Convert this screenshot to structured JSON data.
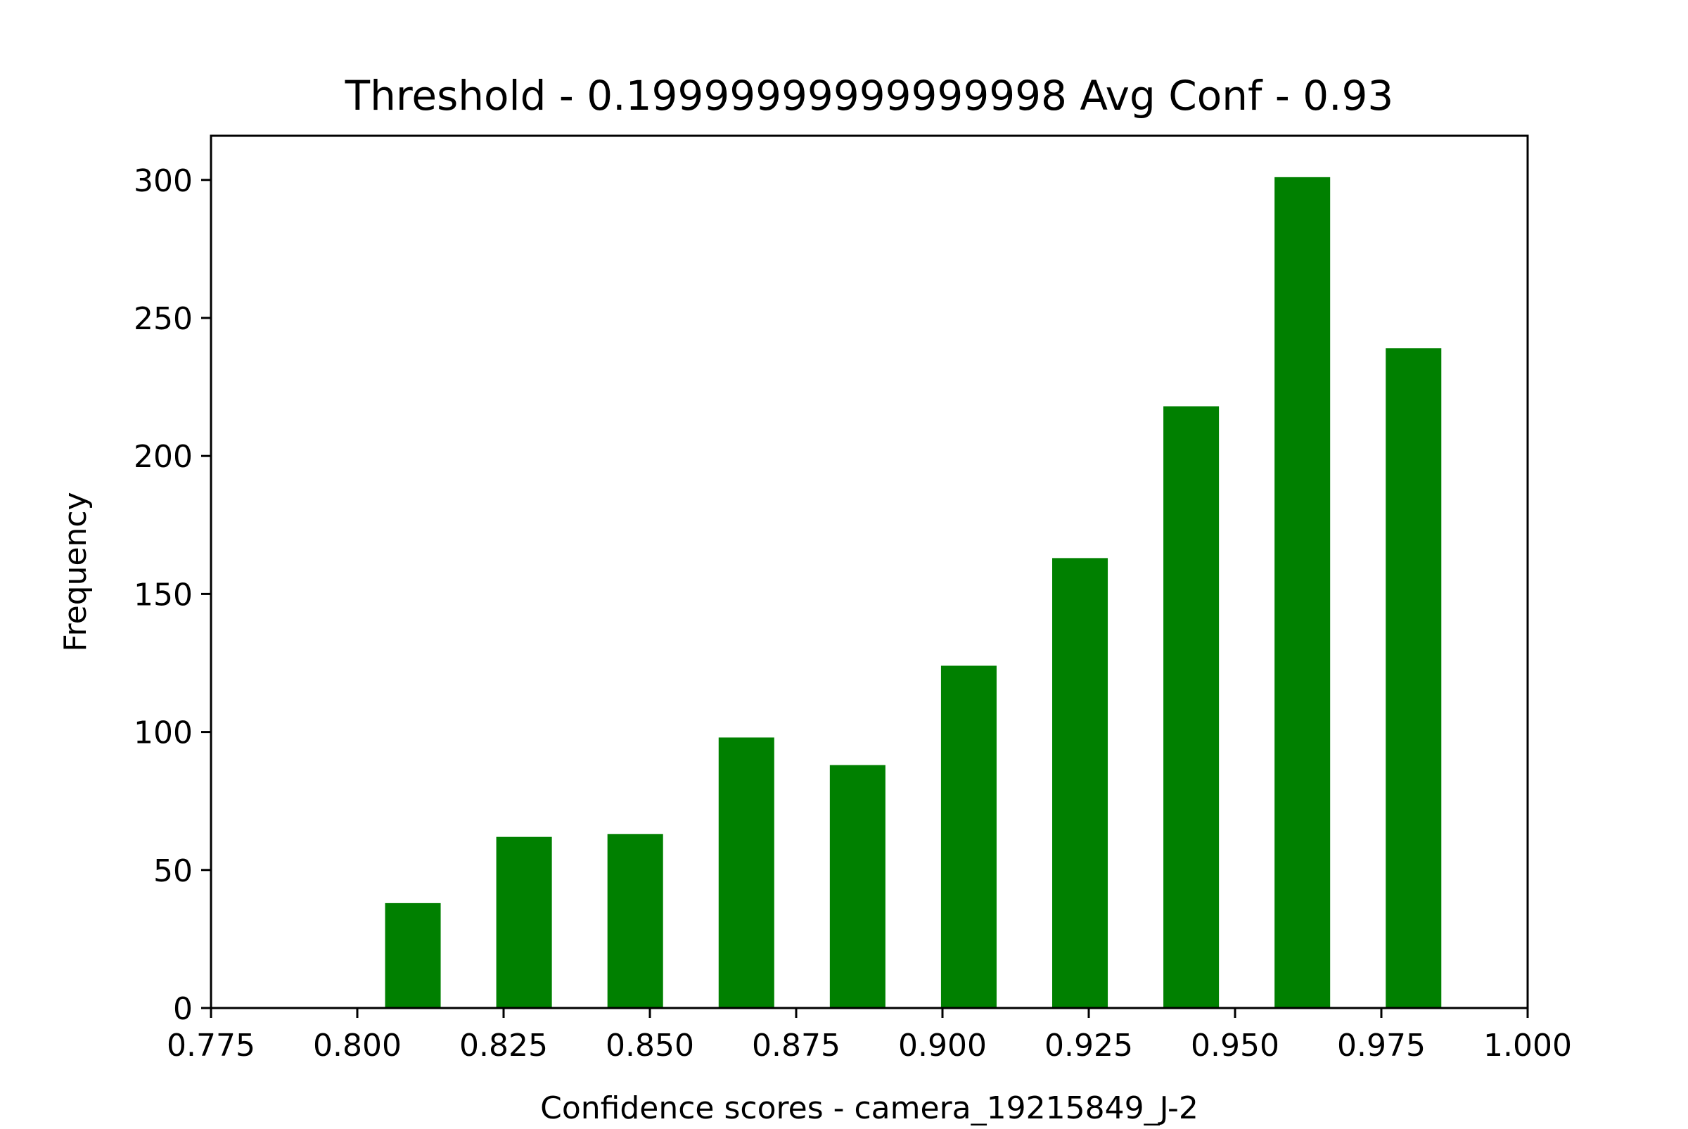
{
  "chart_data": {
    "type": "bar",
    "title": "Threshold - 0.19999999999999998 Avg Conf - 0.93",
    "xlabel": "Confidence scores - camera_19215849_J-2",
    "ylabel": "Frequency",
    "xlim": [
      0.775,
      1.0
    ],
    "ylim": [
      0,
      316
    ],
    "x_ticks": [
      "0.775",
      "0.800",
      "0.825",
      "0.850",
      "0.875",
      "0.900",
      "0.925",
      "0.950",
      "0.975",
      "1.000"
    ],
    "y_ticks": [
      "0",
      "50",
      "100",
      "150",
      "200",
      "250",
      "300"
    ],
    "bin_width": 0.0095,
    "x": [
      0.8095,
      0.8285,
      0.8475,
      0.8665,
      0.8855,
      0.9045,
      0.9235,
      0.9425,
      0.9615,
      0.9805
    ],
    "values": [
      38,
      62,
      63,
      98,
      88,
      124,
      163,
      218,
      301,
      239
    ],
    "bar_color": "#008000",
    "grid": false,
    "legend": "none"
  }
}
